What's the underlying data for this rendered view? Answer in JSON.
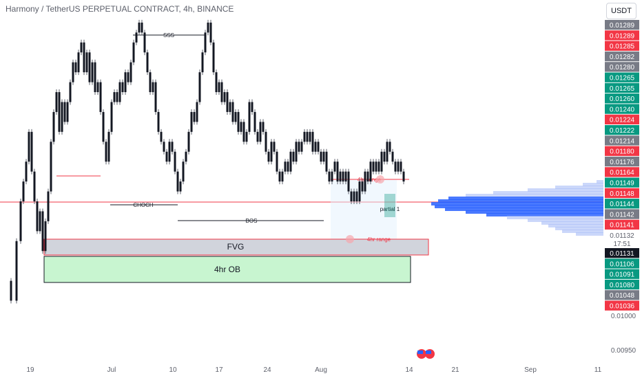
{
  "header": {
    "title": "Harmony / TetherUS PERPETUAL CONTRACT, 4h, BINANCE",
    "currency": "USDT"
  },
  "colors": {
    "up": "#089981",
    "down": "#f23645",
    "neutral": "#787b86",
    "black_tag": "#131722",
    "fvg_fill": "#d1d4dc",
    "ob_fill": "#c8f5d0",
    "volume_profile": "#2962ff",
    "range_line": "#f23645"
  },
  "chart_data": {
    "type": "candlestick",
    "title": "Harmony / TetherUS PERPETUAL CONTRACT, 4h, BINANCE",
    "ylim": [
      0.0094,
      0.013
    ],
    "y_ticks": [
      "0.01000",
      "0.00950"
    ],
    "x_ticks": [
      "19",
      "Jul",
      "10",
      "17",
      "24",
      "Aug",
      "14",
      "21",
      "Sep",
      "11"
    ],
    "price_tags": [
      {
        "value": "0.01289",
        "color": "neutral"
      },
      {
        "value": "0.01289",
        "color": "down"
      },
      {
        "value": "0.01285",
        "color": "down"
      },
      {
        "value": "0.01282",
        "color": "neutral"
      },
      {
        "value": "0.01280",
        "color": "neutral"
      },
      {
        "value": "0.01265",
        "color": "up"
      },
      {
        "value": "0.01265",
        "color": "up"
      },
      {
        "value": "0.01260",
        "color": "up"
      },
      {
        "value": "0.01240",
        "color": "up"
      },
      {
        "value": "0.01224",
        "color": "down"
      },
      {
        "value": "0.01222",
        "color": "up"
      },
      {
        "value": "0.01214",
        "color": "neutral"
      },
      {
        "value": "0.01180",
        "color": "down"
      },
      {
        "value": "0.01176",
        "color": "neutral"
      },
      {
        "value": "0.01164",
        "color": "down"
      },
      {
        "value": "0.01149",
        "color": "up"
      },
      {
        "value": "0.01148",
        "color": "down"
      },
      {
        "value": "0.01144",
        "color": "up"
      },
      {
        "value": "0.01142",
        "color": "neutral"
      },
      {
        "value": "0.01141",
        "color": "down"
      }
    ],
    "current_price": {
      "value": "0.01132",
      "countdown": "17:51"
    },
    "price_tags_below": [
      {
        "value": "0.01131",
        "color": "black"
      },
      {
        "value": "0.01106",
        "color": "up"
      },
      {
        "value": "0.01091",
        "color": "up"
      },
      {
        "value": "0.01080",
        "color": "up"
      },
      {
        "value": "0.01048",
        "color": "neutral"
      },
      {
        "value": "0.01036",
        "color": "down"
      }
    ],
    "annotations": {
      "sss": "SSS",
      "choch": "CHOCH",
      "bos": "BOS",
      "fvg": "FVG",
      "ob": "4hr OB",
      "range_top": "4hr range",
      "range_bottom": "4hr range",
      "partial": "partial 1"
    },
    "path": [
      [
        0,
        0.0103
      ],
      [
        8,
        0.0101
      ],
      [
        16,
        0.0107
      ],
      [
        22,
        0.0111
      ],
      [
        26,
        0.0113
      ],
      [
        30,
        0.0115
      ],
      [
        34,
        0.0118
      ],
      [
        38,
        0.0114
      ],
      [
        42,
        0.0111
      ],
      [
        46,
        0.0108
      ],
      [
        50,
        0.011
      ],
      [
        54,
        0.0106
      ],
      [
        58,
        0.0109
      ],
      [
        62,
        0.0112
      ],
      [
        66,
        0.0117
      ],
      [
        70,
        0.012
      ],
      [
        74,
        0.0122
      ],
      [
        78,
        0.0118
      ],
      [
        82,
        0.0121
      ],
      [
        86,
        0.0119
      ],
      [
        90,
        0.0121
      ],
      [
        94,
        0.0123
      ],
      [
        98,
        0.0125
      ],
      [
        102,
        0.0124
      ],
      [
        106,
        0.0126
      ],
      [
        110,
        0.0127
      ],
      [
        114,
        0.0124
      ],
      [
        118,
        0.0126
      ],
      [
        122,
        0.0123
      ],
      [
        126,
        0.0125
      ],
      [
        130,
        0.0122
      ],
      [
        134,
        0.0123
      ],
      [
        138,
        0.012
      ],
      [
        142,
        0.0117
      ],
      [
        146,
        0.0115
      ],
      [
        150,
        0.0118
      ],
      [
        154,
        0.0121
      ],
      [
        158,
        0.0122
      ],
      [
        162,
        0.0121
      ],
      [
        166,
        0.0123
      ],
      [
        170,
        0.0122
      ],
      [
        174,
        0.0124
      ],
      [
        178,
        0.0123
      ],
      [
        182,
        0.0125
      ],
      [
        186,
        0.0127
      ],
      [
        190,
        0.0128
      ],
      [
        194,
        0.0129
      ],
      [
        198,
        0.0128
      ],
      [
        202,
        0.0126
      ],
      [
        206,
        0.0124
      ],
      [
        210,
        0.0122
      ],
      [
        214,
        0.0123
      ],
      [
        218,
        0.012
      ],
      [
        222,
        0.0118
      ],
      [
        226,
        0.0117
      ],
      [
        230,
        0.0116
      ],
      [
        234,
        0.0115
      ],
      [
        238,
        0.0117
      ],
      [
        242,
        0.0116
      ],
      [
        246,
        0.0114
      ],
      [
        250,
        0.0112
      ],
      [
        254,
        0.0113
      ],
      [
        258,
        0.0115
      ],
      [
        262,
        0.0116
      ],
      [
        266,
        0.0118
      ],
      [
        270,
        0.012
      ],
      [
        274,
        0.0119
      ],
      [
        278,
        0.0121
      ],
      [
        282,
        0.0124
      ],
      [
        286,
        0.0126
      ],
      [
        290,
        0.0128
      ],
      [
        294,
        0.0129
      ],
      [
        298,
        0.0127
      ],
      [
        302,
        0.0124
      ],
      [
        306,
        0.0122
      ],
      [
        310,
        0.0123
      ],
      [
        314,
        0.0121
      ],
      [
        318,
        0.0122
      ],
      [
        322,
        0.012
      ],
      [
        326,
        0.0121
      ],
      [
        330,
        0.0119
      ],
      [
        334,
        0.012
      ],
      [
        338,
        0.0118
      ],
      [
        342,
        0.0119
      ],
      [
        346,
        0.0117
      ],
      [
        350,
        0.0118
      ],
      [
        354,
        0.0121
      ],
      [
        358,
        0.012
      ],
      [
        362,
        0.0118
      ],
      [
        366,
        0.0117
      ],
      [
        370,
        0.0119
      ],
      [
        374,
        0.0118
      ],
      [
        378,
        0.0116
      ],
      [
        382,
        0.0115
      ],
      [
        386,
        0.0117
      ],
      [
        390,
        0.0116
      ],
      [
        394,
        0.0114
      ],
      [
        398,
        0.0113
      ],
      [
        402,
        0.0114
      ],
      [
        406,
        0.0115
      ],
      [
        410,
        0.0114
      ],
      [
        414,
        0.0116
      ],
      [
        418,
        0.0115
      ],
      [
        422,
        0.0117
      ],
      [
        426,
        0.0116
      ],
      [
        430,
        0.0117
      ],
      [
        434,
        0.0118
      ],
      [
        438,
        0.0117
      ],
      [
        442,
        0.0118
      ],
      [
        446,
        0.0116
      ],
      [
        450,
        0.0117
      ],
      [
        454,
        0.0116
      ],
      [
        458,
        0.0115
      ],
      [
        462,
        0.0116
      ],
      [
        466,
        0.0114
      ],
      [
        470,
        0.0113
      ],
      [
        474,
        0.0114
      ],
      [
        478,
        0.0115
      ],
      [
        482,
        0.0113
      ],
      [
        486,
        0.0114
      ],
      [
        490,
        0.0113
      ],
      [
        494,
        0.0114
      ],
      [
        498,
        0.0112
      ],
      [
        502,
        0.0111
      ],
      [
        506,
        0.0112
      ],
      [
        510,
        0.0111
      ],
      [
        514,
        0.0113
      ],
      [
        518,
        0.0112
      ],
      [
        522,
        0.0114
      ],
      [
        526,
        0.0113
      ],
      [
        530,
        0.0115
      ],
      [
        534,
        0.0114
      ],
      [
        538,
        0.0115
      ],
      [
        542,
        0.0114
      ],
      [
        546,
        0.0116
      ],
      [
        550,
        0.0115
      ],
      [
        554,
        0.0117
      ],
      [
        558,
        0.0116
      ],
      [
        562,
        0.0115
      ],
      [
        566,
        0.0114
      ],
      [
        570,
        0.0115
      ],
      [
        574,
        0.0114
      ],
      [
        578,
        0.0113
      ]
    ]
  }
}
